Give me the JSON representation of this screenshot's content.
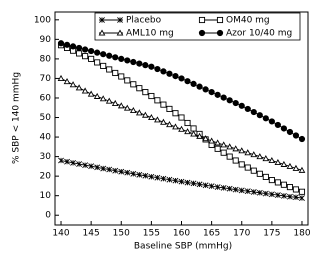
{
  "chart_data": {
    "type": "line",
    "x_label": "Baseline SBP (mmHg)",
    "y_label": "% SBP < 140 mmHg",
    "x": [
      140,
      141,
      142,
      143,
      144,
      145,
      146,
      147,
      148,
      149,
      150,
      151,
      152,
      153,
      154,
      155,
      156,
      157,
      158,
      159,
      160,
      161,
      162,
      163,
      164,
      165,
      166,
      167,
      168,
      169,
      170,
      171,
      172,
      173,
      174,
      175,
      176,
      177,
      178,
      179,
      180
    ],
    "series": [
      {
        "name": "Placebo",
        "color": "#000000",
        "marker": "asterisk",
        "values": [
          28.0,
          27.4,
          26.8,
          26.2,
          25.6,
          25.1,
          24.5,
          23.9,
          23.4,
          22.8,
          22.3,
          21.8,
          21.2,
          20.7,
          20.2,
          19.7,
          19.2,
          18.7,
          18.2,
          17.7,
          17.2,
          16.7,
          16.3,
          15.8,
          15.3,
          14.9,
          14.4,
          14.0,
          13.6,
          13.1,
          12.7,
          12.3,
          11.9,
          11.5,
          11.1,
          10.7,
          10.3,
          9.9,
          9.5,
          9.2,
          8.8
        ]
      },
      {
        "name": "OM40 mg",
        "color": "#000000",
        "marker": "square",
        "values": [
          87,
          85.6,
          84.2,
          82.8,
          81.4,
          80,
          78.2,
          76.4,
          74.6,
          72.8,
          71,
          69,
          67,
          65,
          63,
          61,
          58.8,
          56.6,
          54.4,
          52.2,
          50,
          47.2,
          44.4,
          41.6,
          38.8,
          36,
          34,
          32,
          30,
          28,
          26,
          24.4,
          22.8,
          21.2,
          19.6,
          18,
          16.8,
          15.6,
          14.4,
          13.2,
          12
        ]
      },
      {
        "name": "AML10 mg",
        "color": "#000000",
        "marker": "triangle",
        "values": [
          70,
          68.4,
          66.8,
          65.2,
          63.6,
          62,
          60.8,
          59.6,
          58.4,
          57.2,
          56,
          54.8,
          53.6,
          52.4,
          51.2,
          50,
          48.8,
          47.6,
          46.4,
          45.2,
          44,
          42.8,
          41.6,
          40.4,
          39.2,
          38,
          37,
          36,
          35,
          34,
          33,
          32,
          31,
          30,
          29,
          28,
          27,
          26,
          25,
          24,
          23
        ]
      },
      {
        "name": "Azor 10/40 mg",
        "color": "#000000",
        "marker": "circle",
        "values": [
          88,
          87.2,
          86.4,
          85.6,
          84.8,
          84,
          83.2,
          82.4,
          81.6,
          80.8,
          80,
          79.2,
          78.4,
          77.6,
          76.8,
          76,
          74.8,
          73.6,
          72.4,
          71.2,
          70,
          68.6,
          67.2,
          65.8,
          64.4,
          63,
          61.6,
          60.2,
          58.8,
          57.4,
          56,
          54.4,
          52.8,
          51.2,
          49.6,
          48,
          46.2,
          44.4,
          42.6,
          40.8,
          39
        ]
      }
    ],
    "xlim": [
      139,
      181
    ],
    "ylim": [
      -5,
      104
    ],
    "xticks": [
      140,
      145,
      150,
      155,
      160,
      165,
      170,
      175,
      180
    ],
    "yticks": [
      0,
      10,
      20,
      30,
      40,
      50,
      60,
      70,
      80,
      90,
      100
    ],
    "legend_position": "top"
  }
}
